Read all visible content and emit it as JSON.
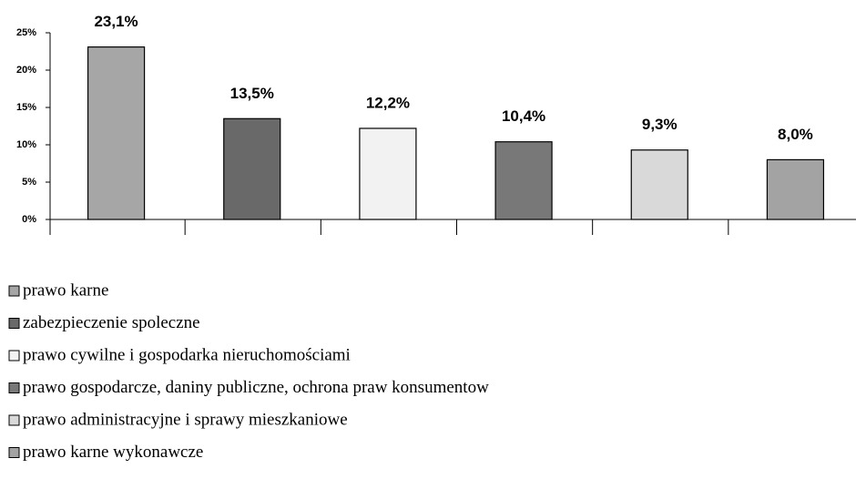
{
  "chart_data": {
    "type": "bar",
    "series": [
      {
        "name": "prawo karne",
        "color": "#a6a6a6",
        "values": [
          23.1
        ],
        "value_labels": [
          "23,1%"
        ]
      },
      {
        "name": "zabezpieczenie spoleczne",
        "color": "#696969",
        "values": [
          13.5
        ],
        "value_labels": [
          "13,5%"
        ]
      },
      {
        "name": "prawo cywilne i gospodarka nieruchomościami",
        "color": "#f2f2f2",
        "values": [
          12.2
        ],
        "value_labels": [
          "12,2%"
        ]
      },
      {
        "name": "prawo gospodarcze, daniny publiczne, ochrona praw konsumentow",
        "color": "#787878",
        "values": [
          10.4
        ],
        "value_labels": [
          "10,4%"
        ]
      },
      {
        "name": "prawo administracyjne i sprawy mieszkaniowe",
        "color": "#d9d9d9",
        "values": [
          9.3
        ],
        "value_labels": [
          "9,3%"
        ]
      },
      {
        "name": "prawo karne wykonawcze",
        "color": "#a3a3a3",
        "values": [
          8.0
        ],
        "value_labels": [
          "8,0%"
        ]
      }
    ],
    "ylim": [
      0,
      25
    ],
    "yticks": [
      {
        "value": 0,
        "label": "0%"
      },
      {
        "value": 5,
        "label": "5%"
      },
      {
        "value": 10,
        "label": "10%"
      },
      {
        "value": 15,
        "label": "15%"
      },
      {
        "value": 20,
        "label": "20%"
      },
      {
        "value": 25,
        "label": "25%"
      }
    ]
  }
}
